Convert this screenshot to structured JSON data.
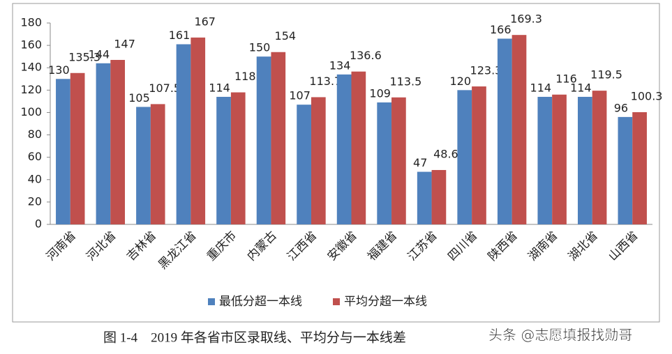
{
  "chart_data": {
    "type": "bar",
    "categories": [
      "河南省",
      "河北省",
      "吉林省",
      "黑龙江省",
      "重庆市",
      "内蒙古",
      "江西省",
      "安徽省",
      "福建省",
      "江苏省",
      "四川省",
      "陕西省",
      "湖南省",
      "湖北省",
      "山西省"
    ],
    "series": [
      {
        "name": "最低分超一本线",
        "color": "#4f81bd",
        "values": [
          130,
          144,
          105,
          161,
          114,
          150,
          107,
          134,
          109,
          47,
          120,
          166,
          114,
          114,
          96
        ]
      },
      {
        "name": "平均分超一本线",
        "color": "#c0504d",
        "values": [
          135.3,
          147,
          107.5,
          167,
          118,
          154,
          113.7,
          136.6,
          113.5,
          48.6,
          123.3,
          169.3,
          116,
          119.5,
          100.3
        ]
      }
    ],
    "ylim": [
      0,
      180
    ],
    "yticks": [
      0,
      20,
      40,
      60,
      80,
      100,
      120,
      140,
      160,
      180
    ],
    "legend": "bottom",
    "caption": "图 1-4　2019 年各省市区录取线、平均分与一本线差"
  },
  "watermark": "头条 @志愿填报找勋哥"
}
